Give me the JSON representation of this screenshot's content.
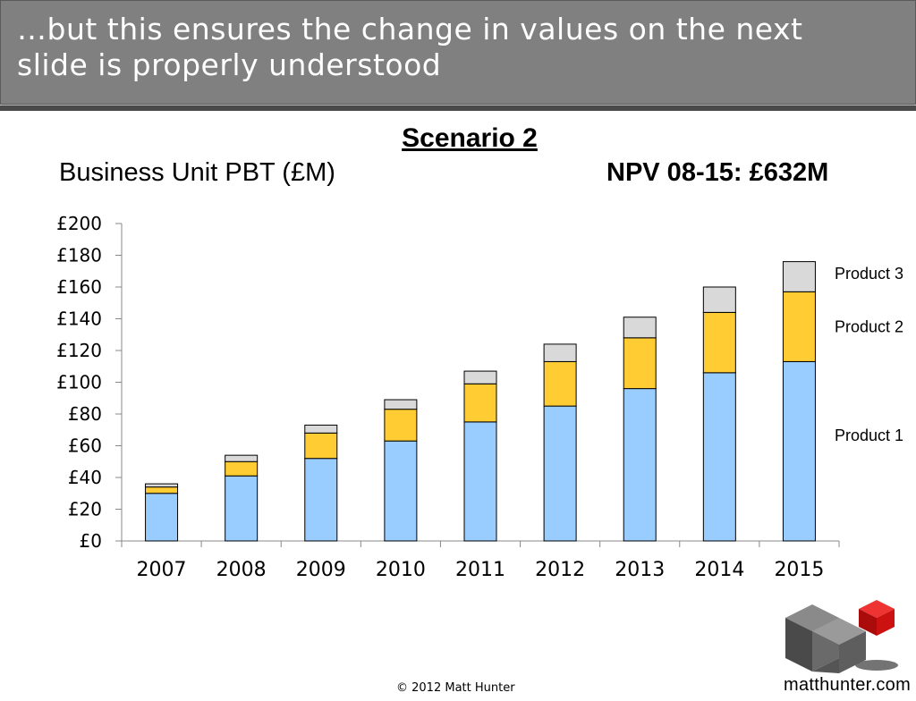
{
  "slide": {
    "heading": "…but this ensures the change in values on the next slide is properly understood",
    "footer": "© 2012 Matt Hunter",
    "logo_text": "matthunter.com"
  },
  "colors": {
    "header_bg": "#808080",
    "product1": "#99ccff",
    "product2": "#ffcc33",
    "product3": "#d9d9d9",
    "logo_red": "#cc1111"
  },
  "chart_data": {
    "type": "bar",
    "stacked": true,
    "title": "Scenario 2",
    "subtitle": "Business Unit PBT (£M)",
    "annotation": "NPV 08-15: £632M",
    "categories": [
      "2007",
      "2008",
      "2009",
      "2010",
      "2011",
      "2012",
      "2013",
      "2014",
      "2015"
    ],
    "series": [
      {
        "name": "Product 1",
        "values": [
          30,
          41,
          52,
          63,
          75,
          85,
          96,
          106,
          113
        ]
      },
      {
        "name": "Product 2",
        "values": [
          4,
          9,
          16,
          20,
          24,
          28,
          32,
          38,
          44
        ]
      },
      {
        "name": "Product 3",
        "values": [
          2,
          4,
          5,
          6,
          8,
          11,
          13,
          16,
          19
        ]
      }
    ],
    "y_ticks": [
      "£0",
      "£20",
      "£40",
      "£60",
      "£80",
      "£100",
      "£120",
      "£140",
      "£160",
      "£180",
      "£200"
    ],
    "ylim": [
      0,
      200
    ],
    "xlabel": "",
    "ylabel": "",
    "legend": "right, inline labels"
  }
}
